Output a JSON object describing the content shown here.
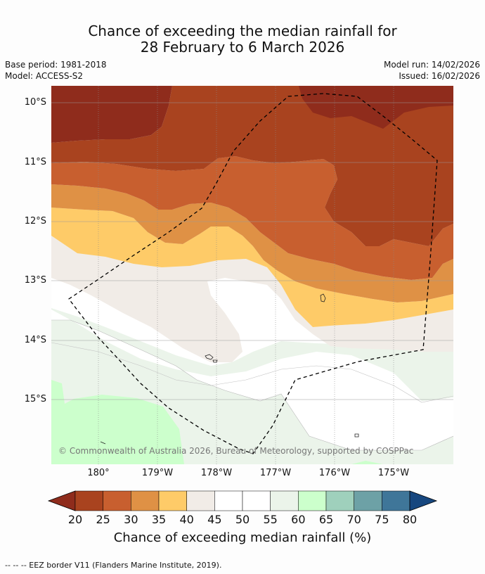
{
  "title": {
    "line1": "Chance of exceeding the median rainfall for",
    "line2": "28 February to 6 March 2026"
  },
  "meta": {
    "base_period": "Base period: 1981-2018",
    "model": "Model: ACCESS-S2",
    "model_run": "Model run: 14/02/2026",
    "issued": "Issued: 16/02/2026"
  },
  "map": {
    "latitude_labels": [
      "10°S",
      "11°S",
      "12°S",
      "13°S",
      "14°S",
      "15°S"
    ],
    "longitude_labels": [
      "180°",
      "179°W",
      "178°W",
      "177°W",
      "176°W",
      "175°W"
    ],
    "copyright": "© Commonwealth of Australia 2026, Bureau of Meteorology, supported by COSPPac"
  },
  "colorbar": {
    "ticks": [
      "20",
      "25",
      "30",
      "35",
      "40",
      "45",
      "50",
      "55",
      "60",
      "65",
      "70",
      "75",
      "80"
    ],
    "colors": [
      "#8f2c1c",
      "#a9431f",
      "#c85f2f",
      "#df9145",
      "#fecb68",
      "#f1ece7",
      "#ffffff",
      "#ffffff",
      "#ebf4ea",
      "#ccffcc",
      "#9fd0bc",
      "#6da1a6",
      "#3f7699",
      "#17477f"
    ],
    "label": "Chance of exceeding median rainfall (%)"
  },
  "footnote": "--  --  -- EEZ border V11 (Flanders Marine Institute, 2019)."
}
